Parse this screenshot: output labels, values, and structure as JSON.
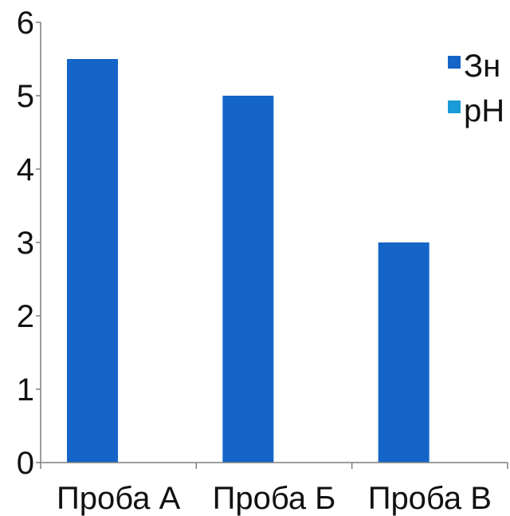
{
  "chart_data": {
    "type": "bar",
    "categories": [
      "Проба А",
      "Проба Б",
      "Проба В"
    ],
    "series": [
      {
        "name": "Зн",
        "values": [
          5.5,
          5,
          3
        ],
        "color": "#1565c8"
      },
      {
        "name": "рН",
        "values": [
          null,
          null,
          null
        ],
        "color": "#1a9ad6"
      }
    ],
    "ylim": [
      0,
      6
    ],
    "yticks": [
      "0",
      "1",
      "2",
      "3",
      "4",
      "5",
      "6"
    ],
    "grid": false,
    "legend_position": "right"
  }
}
